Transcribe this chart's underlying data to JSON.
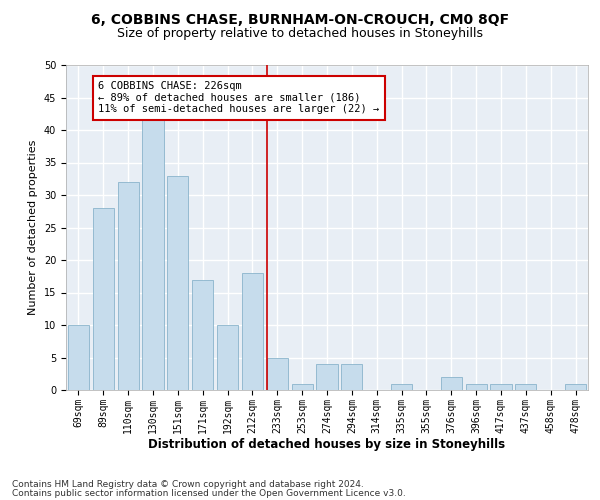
{
  "title1": "6, COBBINS CHASE, BURNHAM-ON-CROUCH, CM0 8QF",
  "title2": "Size of property relative to detached houses in Stoneyhills",
  "xlabel": "Distribution of detached houses by size in Stoneyhills",
  "ylabel": "Number of detached properties",
  "bin_labels": [
    "69sqm",
    "89sqm",
    "110sqm",
    "130sqm",
    "151sqm",
    "171sqm",
    "192sqm",
    "212sqm",
    "233sqm",
    "253sqm",
    "274sqm",
    "294sqm",
    "314sqm",
    "335sqm",
    "355sqm",
    "376sqm",
    "396sqm",
    "417sqm",
    "437sqm",
    "458sqm",
    "478sqm"
  ],
  "bar_values": [
    10,
    28,
    32,
    42,
    33,
    17,
    10,
    18,
    5,
    1,
    4,
    4,
    0,
    1,
    0,
    2,
    1,
    1,
    1,
    0,
    1
  ],
  "bar_color": "#c6dcec",
  "bar_edge_color": "#8ab4cc",
  "vline_x": 7.6,
  "vline_color": "#cc0000",
  "annotation_text": "6 COBBINS CHASE: 226sqm\n← 89% of detached houses are smaller (186)\n11% of semi-detached houses are larger (22) →",
  "annotation_box_color": "#ffffff",
  "annotation_box_edge": "#cc0000",
  "ylim": [
    0,
    50
  ],
  "yticks": [
    0,
    5,
    10,
    15,
    20,
    25,
    30,
    35,
    40,
    45,
    50
  ],
  "bg_color": "#e8eef5",
  "grid_color": "#ffffff",
  "footnote1": "Contains HM Land Registry data © Crown copyright and database right 2024.",
  "footnote2": "Contains public sector information licensed under the Open Government Licence v3.0.",
  "title1_fontsize": 10,
  "title2_fontsize": 9,
  "xlabel_fontsize": 8.5,
  "ylabel_fontsize": 8,
  "tick_fontsize": 7,
  "annot_fontsize": 7.5,
  "footnote_fontsize": 6.5
}
